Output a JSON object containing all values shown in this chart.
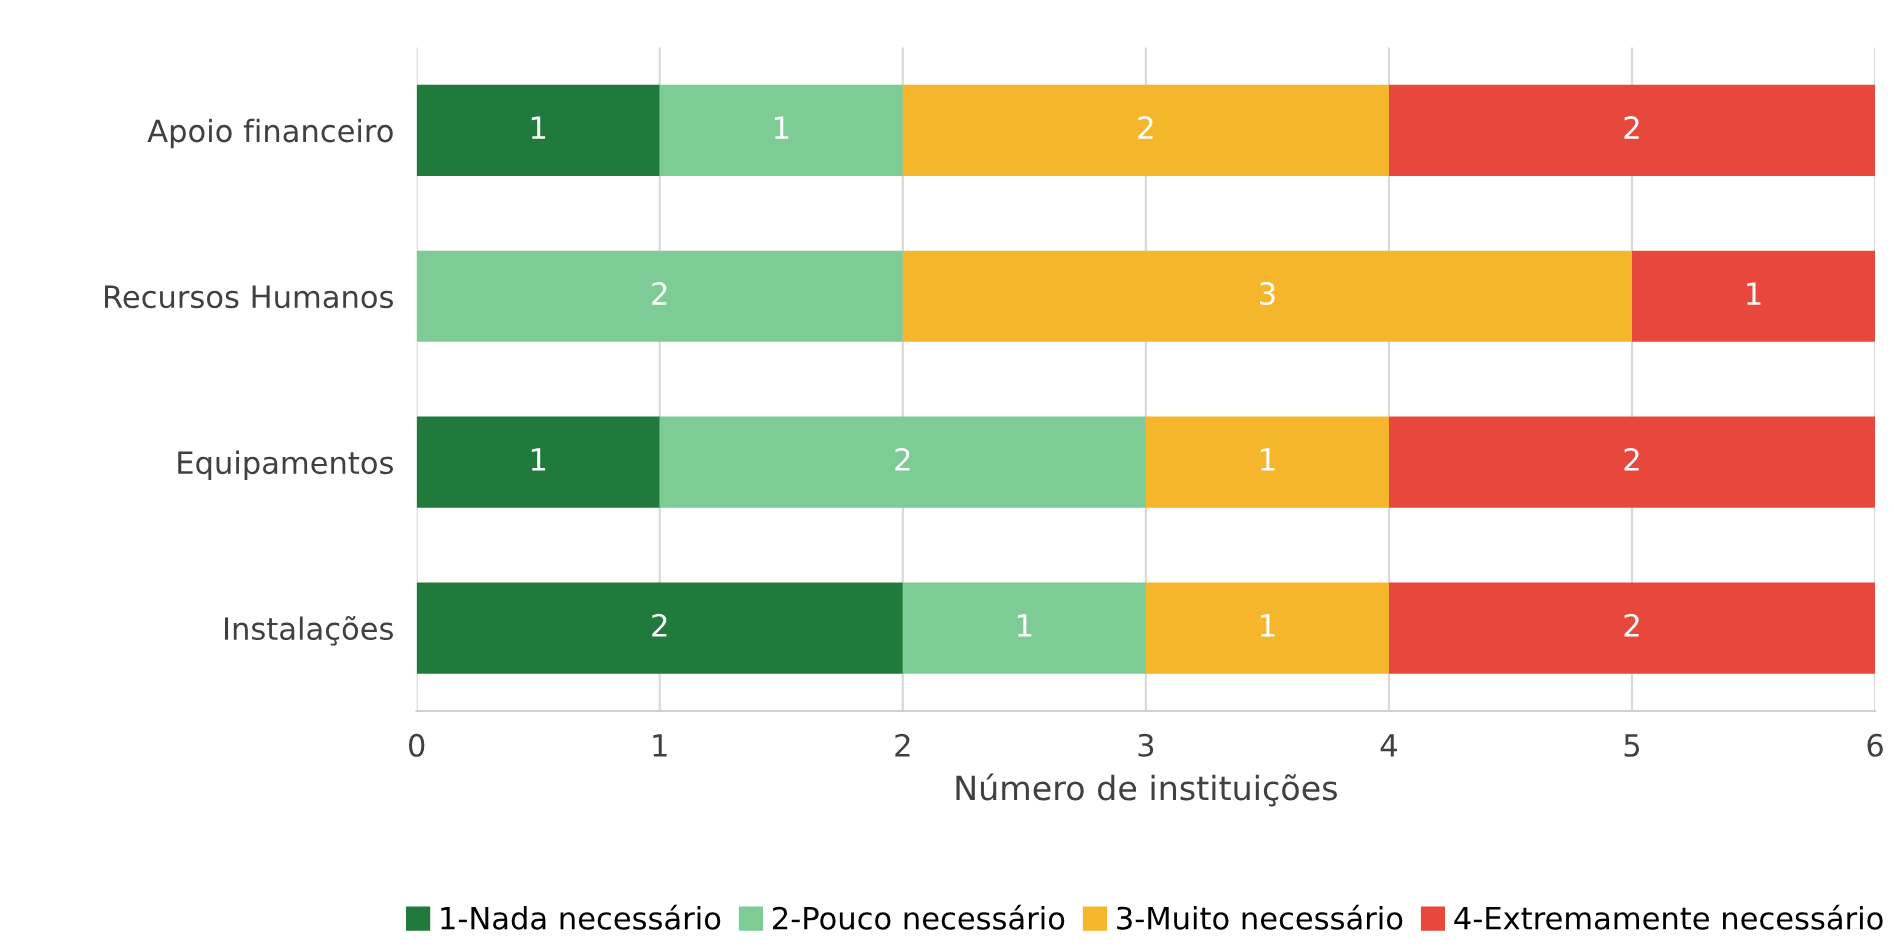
{
  "chart_data": {
    "type": "bar",
    "orientation": "horizontal",
    "stacked": true,
    "categories": [
      "Apoio financeiro",
      "Recursos Humanos",
      "Equipamentos",
      "Instalações"
    ],
    "series": [
      {
        "name": "1-Nada necessário",
        "color": "#1f7a3c",
        "values": [
          1,
          null,
          1,
          2
        ]
      },
      {
        "name": "2-Pouco necessário",
        "color": "#7dcc95",
        "values": [
          1,
          2,
          2,
          1
        ]
      },
      {
        "name": "3-Muito necessário",
        "color": "#f6b62b",
        "values": [
          2,
          3,
          1,
          1
        ]
      },
      {
        "name": "4-Extremamente necessário",
        "color": "#e8473b",
        "values": [
          2,
          1,
          2,
          2
        ]
      }
    ],
    "xlabel": "Número de instituições",
    "xlim": [
      0,
      6
    ],
    "xticks": [
      0,
      1,
      2,
      3,
      4,
      5,
      6
    ],
    "grid": "x",
    "legend": "bottom",
    "data_labels": true
  }
}
